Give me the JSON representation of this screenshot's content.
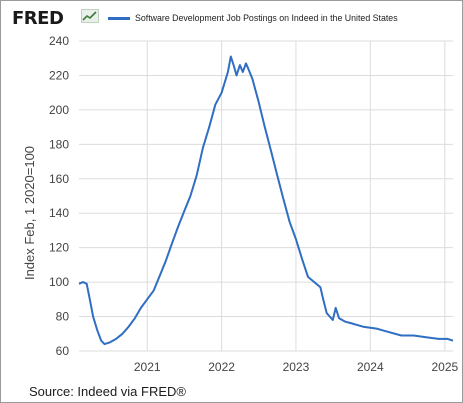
{
  "header": {
    "logo_text": "FRED",
    "logo_icon": "line-chart-icon"
  },
  "source": "Source: Indeed via FRED®",
  "colors": {
    "line": "#2f6ec2",
    "grid": "#dcdcdc",
    "text": "#444444"
  },
  "chart_data": {
    "type": "line",
    "title": "",
    "xlabel": "",
    "ylabel": "Index Feb, 1 2020=100",
    "ylim": [
      60,
      240
    ],
    "yticks": [
      60,
      80,
      100,
      120,
      140,
      160,
      180,
      200,
      220,
      240
    ],
    "xlim": [
      "2020-02-01",
      "2025-02-10"
    ],
    "xticks": [
      {
        "date": "2021-01-01",
        "label": "2021"
      },
      {
        "date": "2022-01-01",
        "label": "2022"
      },
      {
        "date": "2023-01-01",
        "label": "2023"
      },
      {
        "date": "2024-01-01",
        "label": "2024"
      },
      {
        "date": "2025-01-01",
        "label": "2025"
      }
    ],
    "grid": true,
    "legend_position": "top",
    "series": [
      {
        "name": "Software Development Job Postings on Indeed in the United States",
        "points": [
          [
            "2020-02-01",
            99
          ],
          [
            "2020-02-20",
            100
          ],
          [
            "2020-03-10",
            99
          ],
          [
            "2020-03-25",
            90
          ],
          [
            "2020-04-10",
            80
          ],
          [
            "2020-05-01",
            72
          ],
          [
            "2020-05-20",
            66
          ],
          [
            "2020-06-05",
            64
          ],
          [
            "2020-07-01",
            65
          ],
          [
            "2020-08-01",
            67
          ],
          [
            "2020-09-01",
            70
          ],
          [
            "2020-10-01",
            74
          ],
          [
            "2020-11-01",
            79
          ],
          [
            "2020-12-01",
            85
          ],
          [
            "2021-01-01",
            90
          ],
          [
            "2021-02-01",
            95
          ],
          [
            "2021-03-01",
            103
          ],
          [
            "2021-04-01",
            112
          ],
          [
            "2021-05-01",
            122
          ],
          [
            "2021-06-01",
            132
          ],
          [
            "2021-07-01",
            141
          ],
          [
            "2021-08-01",
            150
          ],
          [
            "2021-09-01",
            162
          ],
          [
            "2021-10-01",
            178
          ],
          [
            "2021-11-01",
            190
          ],
          [
            "2021-12-01",
            203
          ],
          [
            "2022-01-01",
            210
          ],
          [
            "2022-02-01",
            222
          ],
          [
            "2022-02-15",
            231
          ],
          [
            "2022-03-01",
            226
          ],
          [
            "2022-03-15",
            220
          ],
          [
            "2022-04-01",
            226
          ],
          [
            "2022-04-15",
            222
          ],
          [
            "2022-05-01",
            227
          ],
          [
            "2022-05-15",
            223
          ],
          [
            "2022-06-01",
            218
          ],
          [
            "2022-07-01",
            205
          ],
          [
            "2022-08-01",
            190
          ],
          [
            "2022-09-01",
            176
          ],
          [
            "2022-10-01",
            162
          ],
          [
            "2022-11-01",
            148
          ],
          [
            "2022-12-01",
            135
          ],
          [
            "2023-01-01",
            125
          ],
          [
            "2023-02-01",
            113
          ],
          [
            "2023-03-01",
            103
          ],
          [
            "2023-04-01",
            100
          ],
          [
            "2023-05-01",
            97
          ],
          [
            "2023-05-15",
            90
          ],
          [
            "2023-06-01",
            82
          ],
          [
            "2023-07-01",
            78
          ],
          [
            "2023-07-15",
            85
          ],
          [
            "2023-08-01",
            79
          ],
          [
            "2023-09-01",
            77
          ],
          [
            "2023-10-01",
            76
          ],
          [
            "2023-12-01",
            74
          ],
          [
            "2024-02-01",
            73
          ],
          [
            "2024-04-01",
            71
          ],
          [
            "2024-06-01",
            69
          ],
          [
            "2024-08-01",
            69
          ],
          [
            "2024-10-01",
            68
          ],
          [
            "2024-12-01",
            67
          ],
          [
            "2025-01-15",
            67
          ],
          [
            "2025-02-10",
            66
          ]
        ]
      }
    ]
  }
}
